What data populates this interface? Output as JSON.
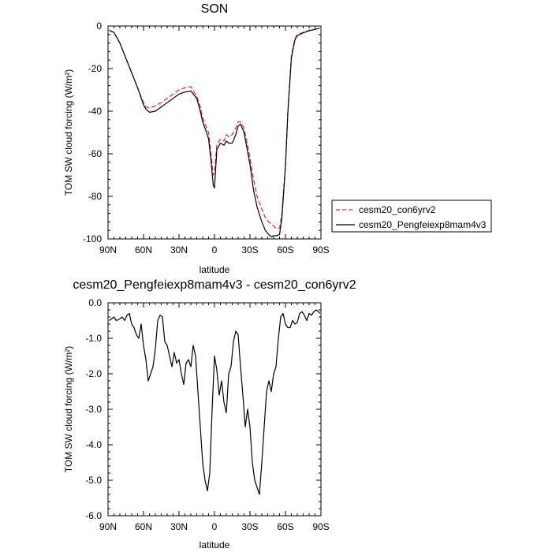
{
  "chart_data": [
    {
      "type": "line",
      "title": "SON",
      "xlabel": "latitude",
      "ylabel": "TOM SW cloud forcing (W/m²)",
      "xlim": [
        90,
        -90
      ],
      "ylim": [
        -100,
        0
      ],
      "x_ticks": [
        90,
        60,
        30,
        0,
        -30,
        -60,
        -90
      ],
      "x_tick_labels": [
        "90N",
        "60N",
        "30N",
        "0",
        "30S",
        "60S",
        "90S"
      ],
      "y_ticks": [
        0,
        -20,
        -40,
        -60,
        -80,
        -100
      ],
      "y_tick_labels": [
        "0",
        "-20",
        "-40",
        "-60",
        "-80",
        "-100"
      ],
      "legend": {
        "placement": "right",
        "entries": [
          "cesm20_con6yrv2",
          "cesm20_Pengfeiexp8mam4v3"
        ]
      },
      "series": [
        {
          "name": "cesm20_con6yrv2",
          "color": "#e8202a",
          "dash": "dashed",
          "x": [
            89,
            85,
            80,
            75,
            70,
            65,
            60,
            58,
            55,
            50,
            45,
            40,
            35,
            30,
            25,
            20,
            15,
            12,
            10,
            8,
            5,
            3,
            1,
            0,
            -2,
            -5,
            -8,
            -10,
            -12,
            -15,
            -18,
            -20,
            -22,
            -25,
            -28,
            -30,
            -33,
            -36,
            -40,
            -43,
            -46,
            -48,
            -50,
            -52,
            -55,
            -57,
            -60,
            -62,
            -65,
            -68,
            -70,
            -75,
            -80,
            -85,
            -89
          ],
          "y": [
            -2,
            -3,
            -8,
            -15,
            -22,
            -29,
            -36,
            -38,
            -38.5,
            -37.5,
            -36,
            -34,
            -32,
            -30,
            -29,
            -28.5,
            -33,
            -38,
            -43,
            -46,
            -50,
            -60,
            -70,
            -69,
            -56,
            -53,
            -54,
            -51,
            -52,
            -51,
            -48,
            -45,
            -45,
            -48,
            -56,
            -62,
            -72,
            -80,
            -86,
            -90,
            -92,
            -93,
            -94,
            -95,
            -95,
            -88,
            -65,
            -40,
            -14,
            -6,
            -4,
            -3,
            -2,
            -1.5,
            -1
          ]
        },
        {
          "name": "cesm20_Pengfeiexp8mam4v3",
          "color": "#000000",
          "dash": "solid",
          "x": [
            89,
            85,
            80,
            75,
            70,
            65,
            60,
            58,
            55,
            50,
            45,
            40,
            35,
            30,
            25,
            20,
            15,
            12,
            10,
            8,
            5,
            3,
            1,
            0,
            -2,
            -5,
            -8,
            -10,
            -12,
            -15,
            -18,
            -20,
            -22,
            -25,
            -28,
            -30,
            -33,
            -36,
            -40,
            -43,
            -46,
            -48,
            -50,
            -52,
            -55,
            -57,
            -60,
            -62,
            -65,
            -68,
            -70,
            -75,
            -80,
            -85,
            -89
          ],
          "y": [
            -2,
            -3,
            -8,
            -15,
            -22,
            -29,
            -37,
            -39,
            -40.5,
            -40,
            -38,
            -36,
            -34,
            -32,
            -31,
            -30.5,
            -34,
            -40,
            -45,
            -48,
            -53,
            -63,
            -75,
            -76,
            -58,
            -55,
            -56,
            -54,
            -55,
            -55,
            -51,
            -47,
            -46,
            -50,
            -59,
            -65,
            -77,
            -85,
            -92,
            -96,
            -98,
            -99,
            -98.5,
            -98.5,
            -98,
            -90,
            -66,
            -41,
            -15,
            -6.5,
            -4.5,
            -3.2,
            -2.2,
            -1.6,
            -1
          ]
        }
      ]
    },
    {
      "type": "line",
      "title": "cesm20_Pengfeiexp8mam4v3 - cesm20_con6yrv2",
      "xlabel": "latitude",
      "ylabel": "TOM SW cloud forcing (W/m²)",
      "xlim": [
        90,
        -90
      ],
      "ylim": [
        -6.0,
        0.0
      ],
      "x_ticks": [
        90,
        60,
        30,
        0,
        -30,
        -60,
        -90
      ],
      "x_tick_labels": [
        "90N",
        "60N",
        "30N",
        "0",
        "30S",
        "60S",
        "90S"
      ],
      "y_ticks": [
        0,
        -1,
        -2,
        -3,
        -4,
        -5,
        -6
      ],
      "y_tick_labels": [
        "0.0",
        "-1.0",
        "-2.0",
        "-3.0",
        "-4.0",
        "-5.0",
        "-6.0"
      ],
      "series": [
        {
          "color": "#000000",
          "dash": "solid",
          "x": [
            89,
            87,
            85,
            83,
            80,
            78,
            76,
            74,
            72,
            70,
            68,
            66,
            64,
            62,
            60,
            58,
            56,
            54,
            52,
            50,
            48,
            46,
            44,
            42,
            40,
            38,
            36,
            34,
            32,
            30,
            28,
            26,
            24,
            22,
            20,
            18,
            16,
            14,
            12,
            10,
            8,
            6,
            4,
            2,
            0,
            -2,
            -4,
            -6,
            -8,
            -10,
            -12,
            -14,
            -16,
            -18,
            -20,
            -22,
            -24,
            -26,
            -28,
            -30,
            -32,
            -34,
            -36,
            -38,
            -40,
            -42,
            -44,
            -46,
            -48,
            -50,
            -52,
            -54,
            -56,
            -58,
            -60,
            -62,
            -64,
            -66,
            -68,
            -70,
            -72,
            -74,
            -76,
            -78,
            -80,
            -82,
            -84,
            -86,
            -88,
            -89
          ],
          "y": [
            -0.5,
            -0.45,
            -0.4,
            -0.5,
            -0.45,
            -0.4,
            -0.5,
            -0.35,
            -0.3,
            -0.6,
            -0.7,
            -0.9,
            -1.0,
            -0.6,
            -1.2,
            -1.6,
            -2.2,
            -2.0,
            -1.8,
            -1.3,
            -0.5,
            -0.35,
            -0.4,
            -1.1,
            -1.2,
            -1.5,
            -1.8,
            -1.4,
            -1.7,
            -1.6,
            -2.0,
            -2.3,
            -1.7,
            -1.6,
            -1.8,
            -1.2,
            -1.5,
            -2.5,
            -3.5,
            -4.5,
            -5.0,
            -5.3,
            -4.8,
            -3.0,
            -1.5,
            -1.9,
            -2.6,
            -2.2,
            -2.8,
            -3.1,
            -2.0,
            -1.8,
            -1.1,
            -0.8,
            -0.9,
            -1.8,
            -2.6,
            -3.5,
            -3.0,
            -3.5,
            -4.5,
            -5.0,
            -5.2,
            -5.4,
            -4.5,
            -3.5,
            -2.5,
            -2.2,
            -2.5,
            -2.0,
            -1.8,
            -1.0,
            -0.4,
            -0.3,
            -0.6,
            -0.7,
            -0.7,
            -0.5,
            -0.6,
            -0.55,
            -0.3,
            -0.25,
            -0.35,
            -0.5,
            -0.3,
            -0.35,
            -0.25,
            -0.2,
            -0.25,
            -0.3
          ]
        }
      ]
    }
  ]
}
